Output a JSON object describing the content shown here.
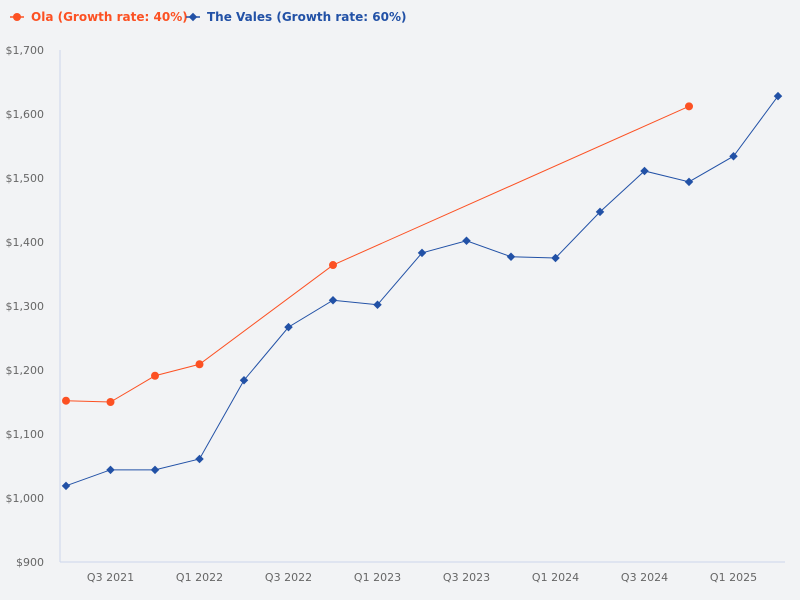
{
  "chart_data": {
    "type": "line",
    "title": "",
    "xlabel": "",
    "ylabel": "",
    "ylim": [
      900,
      1700
    ],
    "yticks": [
      "$900",
      "$1,000",
      "$1,100",
      "$1,200",
      "$1,300",
      "$1,400",
      "$1,500",
      "$1,600",
      "$1,700"
    ],
    "ytick_values": [
      900,
      1000,
      1100,
      1200,
      1300,
      1400,
      1500,
      1600,
      1700
    ],
    "x": [
      "Q2 2021",
      "Q3 2021",
      "Q4 2021",
      "Q1 2022",
      "Q2 2022",
      "Q3 2022",
      "Q4 2022",
      "Q1 2023",
      "Q2 2023",
      "Q3 2023",
      "Q4 2023",
      "Q1 2024",
      "Q2 2024",
      "Q3 2024",
      "Q4 2024",
      "Q1 2025",
      "Q2 2025"
    ],
    "xticks": [
      "Q3 2021",
      "Q1 2022",
      "Q3 2022",
      "Q1 2023",
      "Q3 2023",
      "Q1 2024",
      "Q3 2024",
      "Q1 2025"
    ],
    "grid": false,
    "legend_position": "top-left",
    "series": [
      {
        "name": "Ola (Growth rate: 40%)",
        "color": "#fc5123",
        "marker": "circle",
        "points": [
          [
            "Q2 2021",
            1152
          ],
          [
            "Q3 2021",
            1150
          ],
          [
            "Q4 2021",
            1191
          ],
          [
            "Q1 2022",
            1209
          ],
          [
            "Q4 2022",
            1364
          ],
          [
            "Q4 2024",
            1612
          ]
        ]
      },
      {
        "name": "The Vales (Growth rate: 60%)",
        "color": "#2251a6",
        "marker": "diamond",
        "points": [
          [
            "Q2 2021",
            1019
          ],
          [
            "Q3 2021",
            1044
          ],
          [
            "Q4 2021",
            1044
          ],
          [
            "Q1 2022",
            1061
          ],
          [
            "Q2 2022",
            1184
          ],
          [
            "Q3 2022",
            1267
          ],
          [
            "Q4 2022",
            1309
          ],
          [
            "Q1 2023",
            1302
          ],
          [
            "Q2 2023",
            1383
          ],
          [
            "Q3 2023",
            1402
          ],
          [
            "Q4 2023",
            1377
          ],
          [
            "Q1 2024",
            1375
          ],
          [
            "Q2 2024",
            1447
          ],
          [
            "Q3 2024",
            1511
          ],
          [
            "Q4 2024",
            1494
          ],
          [
            "Q1 2025",
            1534
          ],
          [
            "Q2 2025",
            1628
          ]
        ]
      }
    ]
  }
}
